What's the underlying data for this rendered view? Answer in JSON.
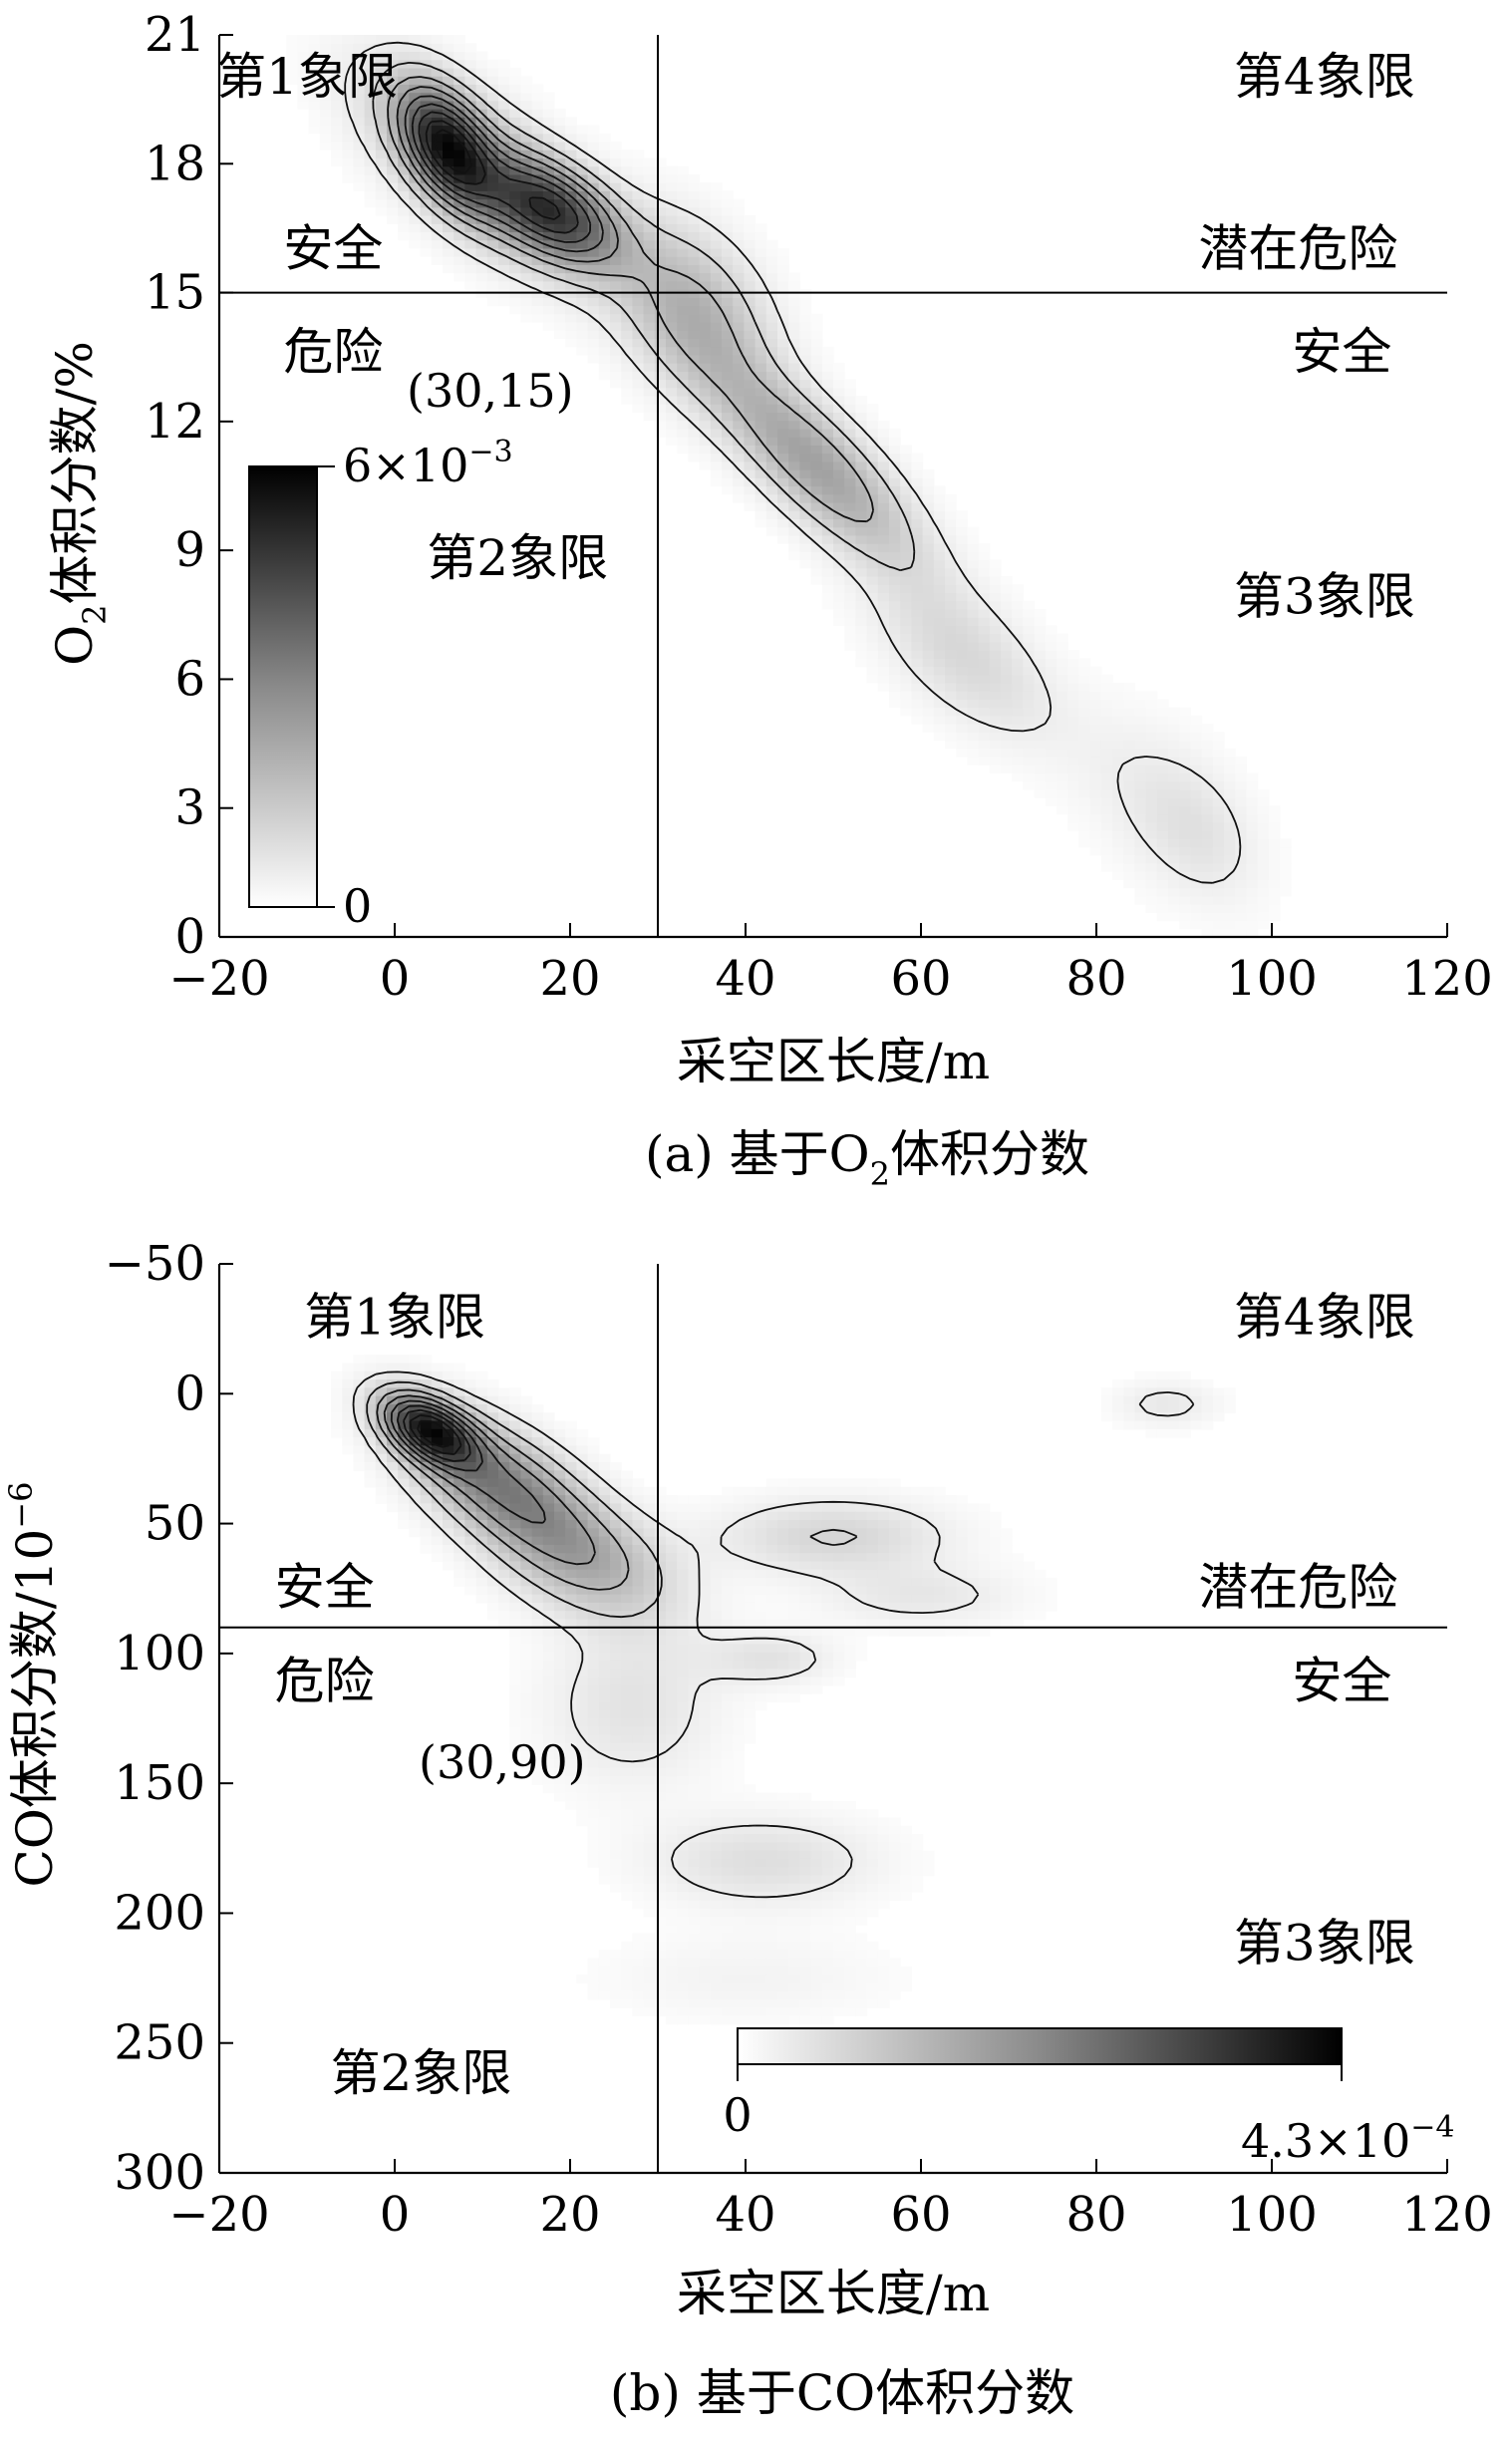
{
  "chart_data": [
    {
      "type": "heatmap",
      "xlabel": "采空区长度/m",
      "ylabel": "O",
      "ylabel_sub": "2",
      "ylabel_rest": "体积分数/%",
      "caption_pre": "(a) 基于O",
      "caption_sub": "2",
      "caption_post": "体积分数",
      "xlim": [
        -20,
        120
      ],
      "ylim": [
        0,
        21
      ],
      "y_inverted": false,
      "xticks": [
        -20,
        0,
        20,
        40,
        60,
        80,
        100,
        120
      ],
      "xtick_labels": [
        "−20",
        "0",
        "20",
        "40",
        "60",
        "80",
        "100",
        "120"
      ],
      "yticks": [
        0,
        3,
        6,
        9,
        12,
        15,
        18,
        21
      ],
      "ytick_labels": [
        "0",
        "3",
        "6",
        "9",
        "12",
        "15",
        "18",
        "21"
      ],
      "divider": {
        "x": 30,
        "y": 15
      },
      "divider_label": "(30,15)",
      "colorbar": {
        "min_label": "0",
        "max_base": "6×10",
        "max_exp": "−3",
        "orientation": "vertical"
      },
      "quadrant_labels": [
        {
          "text": "第1象限",
          "x": -10,
          "y": 20.0
        },
        {
          "text": "第4象限",
          "x": 106,
          "y": 20.0
        },
        {
          "text": "安全",
          "x": -7,
          "y": 16.0
        },
        {
          "text": "潜在危险",
          "x": 103,
          "y": 16.0
        },
        {
          "text": "危险",
          "x": -7,
          "y": 13.6
        },
        {
          "text": "安全",
          "x": 108,
          "y": 13.6
        },
        {
          "text": "第2象限",
          "x": 14,
          "y": 8.8
        },
        {
          "text": "第3象限",
          "x": 106,
          "y": 7.9
        }
      ],
      "density_clusters": [
        {
          "x": 6,
          "y": 18.4,
          "sx": 3.5,
          "sy": 0.9,
          "rho": -0.5,
          "w": 1.0
        },
        {
          "x": 18,
          "y": 16.9,
          "sx": 5.0,
          "sy": 0.8,
          "rho": -0.5,
          "w": 0.85
        },
        {
          "x": 10,
          "y": 17.8,
          "sx": 9.0,
          "sy": 1.6,
          "rho": -0.7,
          "w": 0.35
        },
        {
          "x": 34,
          "y": 14.6,
          "sx": 6.0,
          "sy": 1.4,
          "rho": -0.4,
          "w": 0.35
        },
        {
          "x": 48,
          "y": 11.0,
          "sx": 8.0,
          "sy": 1.6,
          "rho": -0.8,
          "w": 0.45
        },
        {
          "x": 65,
          "y": 6.5,
          "sx": 7.0,
          "sy": 1.3,
          "rho": -0.6,
          "w": 0.18
        },
        {
          "x": 88,
          "y": 3.0,
          "sx": 7.0,
          "sy": 1.5,
          "rho": -0.5,
          "w": 0.1
        },
        {
          "x": 92,
          "y": 2.4,
          "sx": 4.0,
          "sy": 1.0,
          "rho": -0.3,
          "w": 0.06
        }
      ]
    },
    {
      "type": "heatmap",
      "xlabel": "采空区长度/m",
      "ylabel": "CO体积分数/10",
      "ylabel_sup": "−6",
      "caption": "(b) 基于CO体积分数",
      "xlim": [
        -20,
        120
      ],
      "ylim": [
        -50,
        300
      ],
      "y_inverted": true,
      "xticks": [
        -20,
        0,
        20,
        40,
        60,
        80,
        100,
        120
      ],
      "xtick_labels": [
        "−20",
        "0",
        "20",
        "40",
        "60",
        "80",
        "100",
        "120"
      ],
      "yticks": [
        -50,
        0,
        50,
        100,
        150,
        200,
        250,
        300
      ],
      "ytick_labels": [
        "−50",
        "0",
        "50",
        "100",
        "150",
        "200",
        "250",
        "300"
      ],
      "divider": {
        "x": 30,
        "y": 90
      },
      "divider_label": "(30,90)",
      "colorbar": {
        "min_label": "0",
        "max_base": "4.3×10",
        "max_exp": "−4",
        "orientation": "horizontal"
      },
      "quadrant_labels": [
        {
          "text": "第1象限",
          "x": 0,
          "y": -29
        },
        {
          "text": "第4象限",
          "x": 106,
          "y": -29
        },
        {
          "text": "安全",
          "x": -8,
          "y": 75
        },
        {
          "text": "潜在危险",
          "x": 103,
          "y": 75
        },
        {
          "text": "危险",
          "x": -8,
          "y": 111
        },
        {
          "text": "安全",
          "x": 108,
          "y": 111
        },
        {
          "text": "第3象限",
          "x": 106,
          "y": 212
        },
        {
          "text": "第2象限",
          "x": 3,
          "y": 262
        }
      ],
      "density_clusters": [
        {
          "x": 4,
          "y": 14,
          "sx": 3.5,
          "sy": 9,
          "rho": 0.5,
          "w": 1.0
        },
        {
          "x": 12,
          "y": 35,
          "sx": 7.0,
          "sy": 18,
          "rho": 0.6,
          "w": 0.55
        },
        {
          "x": 22,
          "y": 65,
          "sx": 7.0,
          "sy": 16,
          "rho": 0.4,
          "w": 0.3
        },
        {
          "x": 50,
          "y": 55,
          "sx": 9.0,
          "sy": 10,
          "rho": 0.0,
          "w": 0.18
        },
        {
          "x": 60,
          "y": 78,
          "sx": 8.0,
          "sy": 8,
          "rho": 0.0,
          "w": 0.1
        },
        {
          "x": 43,
          "y": 102,
          "sx": 5.0,
          "sy": 7,
          "rho": 0.0,
          "w": 0.12
        },
        {
          "x": 27,
          "y": 120,
          "sx": 7.0,
          "sy": 22,
          "rho": 0.0,
          "w": 0.12
        },
        {
          "x": 42,
          "y": 180,
          "sx": 9.0,
          "sy": 12,
          "rho": 0.0,
          "w": 0.14
        },
        {
          "x": 88,
          "y": 4,
          "sx": 4.0,
          "sy": 6,
          "rho": 0.0,
          "w": 0.1
        },
        {
          "x": 40,
          "y": 225,
          "sx": 12.0,
          "sy": 12,
          "rho": 0.0,
          "w": 0.05
        }
      ]
    }
  ]
}
